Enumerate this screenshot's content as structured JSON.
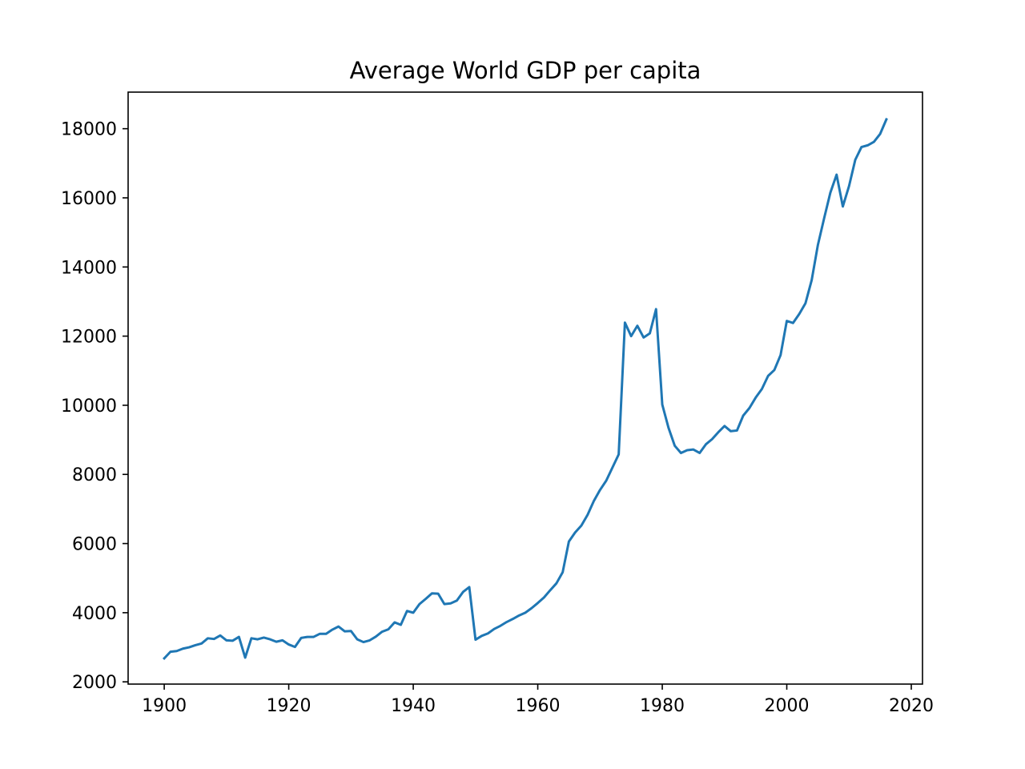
{
  "chart_data": {
    "type": "line",
    "title": "Average World GDP per capita",
    "xlabel": "",
    "ylabel": "",
    "xlim": [
      1894.2,
      2021.8
    ],
    "ylim": [
      1935,
      19058
    ],
    "xticks": [
      1900,
      1920,
      1940,
      1960,
      1980,
      2000,
      2020
    ],
    "yticks": [
      2000,
      4000,
      6000,
      8000,
      10000,
      12000,
      14000,
      16000,
      18000
    ],
    "grid": false,
    "legend": false,
    "line_color": "#1f77b4",
    "series": [
      {
        "x": [
          1900,
          1901,
          1902,
          1903,
          1904,
          1905,
          1906,
          1907,
          1908,
          1909,
          1910,
          1911,
          1912,
          1913,
          1914,
          1915,
          1916,
          1917,
          1918,
          1919,
          1920,
          1921,
          1922,
          1923,
          1924,
          1925,
          1926,
          1927,
          1928,
          1929,
          1930,
          1931,
          1932,
          1933,
          1934,
          1935,
          1936,
          1937,
          1938,
          1939,
          1940,
          1941,
          1942,
          1943,
          1944,
          1945,
          1946,
          1947,
          1948,
          1949,
          1950,
          1951,
          1952,
          1953,
          1954,
          1955,
          1956,
          1957,
          1958,
          1959,
          1960,
          1961,
          1962,
          1963,
          1964,
          1965,
          1966,
          1967,
          1968,
          1969,
          1970,
          1971,
          1972,
          1973,
          1974,
          1975,
          1976,
          1977,
          1978,
          1979,
          1980,
          1981,
          1982,
          1983,
          1984,
          1985,
          1986,
          1987,
          1988,
          1989,
          1990,
          1991,
          1992,
          1993,
          1994,
          1995,
          1996,
          1997,
          1998,
          1999,
          2000,
          2001,
          2002,
          2003,
          2004,
          2005,
          2006,
          2007,
          2008,
          2009,
          2010,
          2011,
          2012,
          2013,
          2014,
          2015,
          2016
        ],
        "values": [
          2680,
          2870,
          2890,
          2960,
          3000,
          3060,
          3110,
          3260,
          3240,
          3340,
          3200,
          3190,
          3300,
          2700,
          3260,
          3230,
          3280,
          3230,
          3160,
          3200,
          3080,
          3010,
          3270,
          3300,
          3300,
          3390,
          3390,
          3510,
          3600,
          3460,
          3470,
          3230,
          3150,
          3200,
          3310,
          3450,
          3520,
          3720,
          3650,
          4050,
          4000,
          4250,
          4400,
          4560,
          4550,
          4250,
          4270,
          4350,
          4600,
          4740,
          3220,
          3330,
          3400,
          3530,
          3620,
          3730,
          3820,
          3920,
          4000,
          4130,
          4280,
          4440,
          4650,
          4850,
          5170,
          6060,
          6320,
          6520,
          6830,
          7230,
          7550,
          7820,
          8200,
          8580,
          12390,
          12000,
          12300,
          11960,
          12080,
          12780,
          10020,
          9350,
          8830,
          8620,
          8700,
          8720,
          8620,
          8870,
          9020,
          9220,
          9400,
          9250,
          9270,
          9700,
          9920,
          10220,
          10470,
          10850,
          11020,
          11450,
          12440,
          12380,
          12640,
          12950,
          13620,
          14640,
          15410,
          16150,
          16670,
          15750,
          16340,
          17100,
          17470,
          17520,
          17620,
          17850,
          18270
        ]
      }
    ]
  }
}
